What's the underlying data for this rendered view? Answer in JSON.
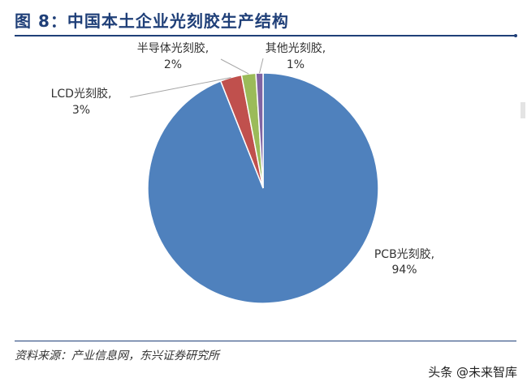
{
  "header": {
    "title": "图 8：中国本土企业光刻胶生产结构"
  },
  "footer": {
    "source": "资料来源：产业信息网，东兴证券研究所",
    "watermark": "头条 @未来智库"
  },
  "chart_data": {
    "type": "pie",
    "title": "",
    "slices": [
      {
        "label": "PCB光刻胶",
        "value": 94,
        "value_label": "94%",
        "color": "#4f81bd"
      },
      {
        "label": "LCD光刻胶",
        "value": 3,
        "value_label": "3%",
        "color": "#c0504d"
      },
      {
        "label": "半导体光刻胶",
        "value": 2,
        "value_label": "2%",
        "color": "#9bbb59"
      },
      {
        "label": "其他光刻胶",
        "value": 1,
        "value_label": "1%",
        "color": "#8064a2"
      }
    ]
  }
}
